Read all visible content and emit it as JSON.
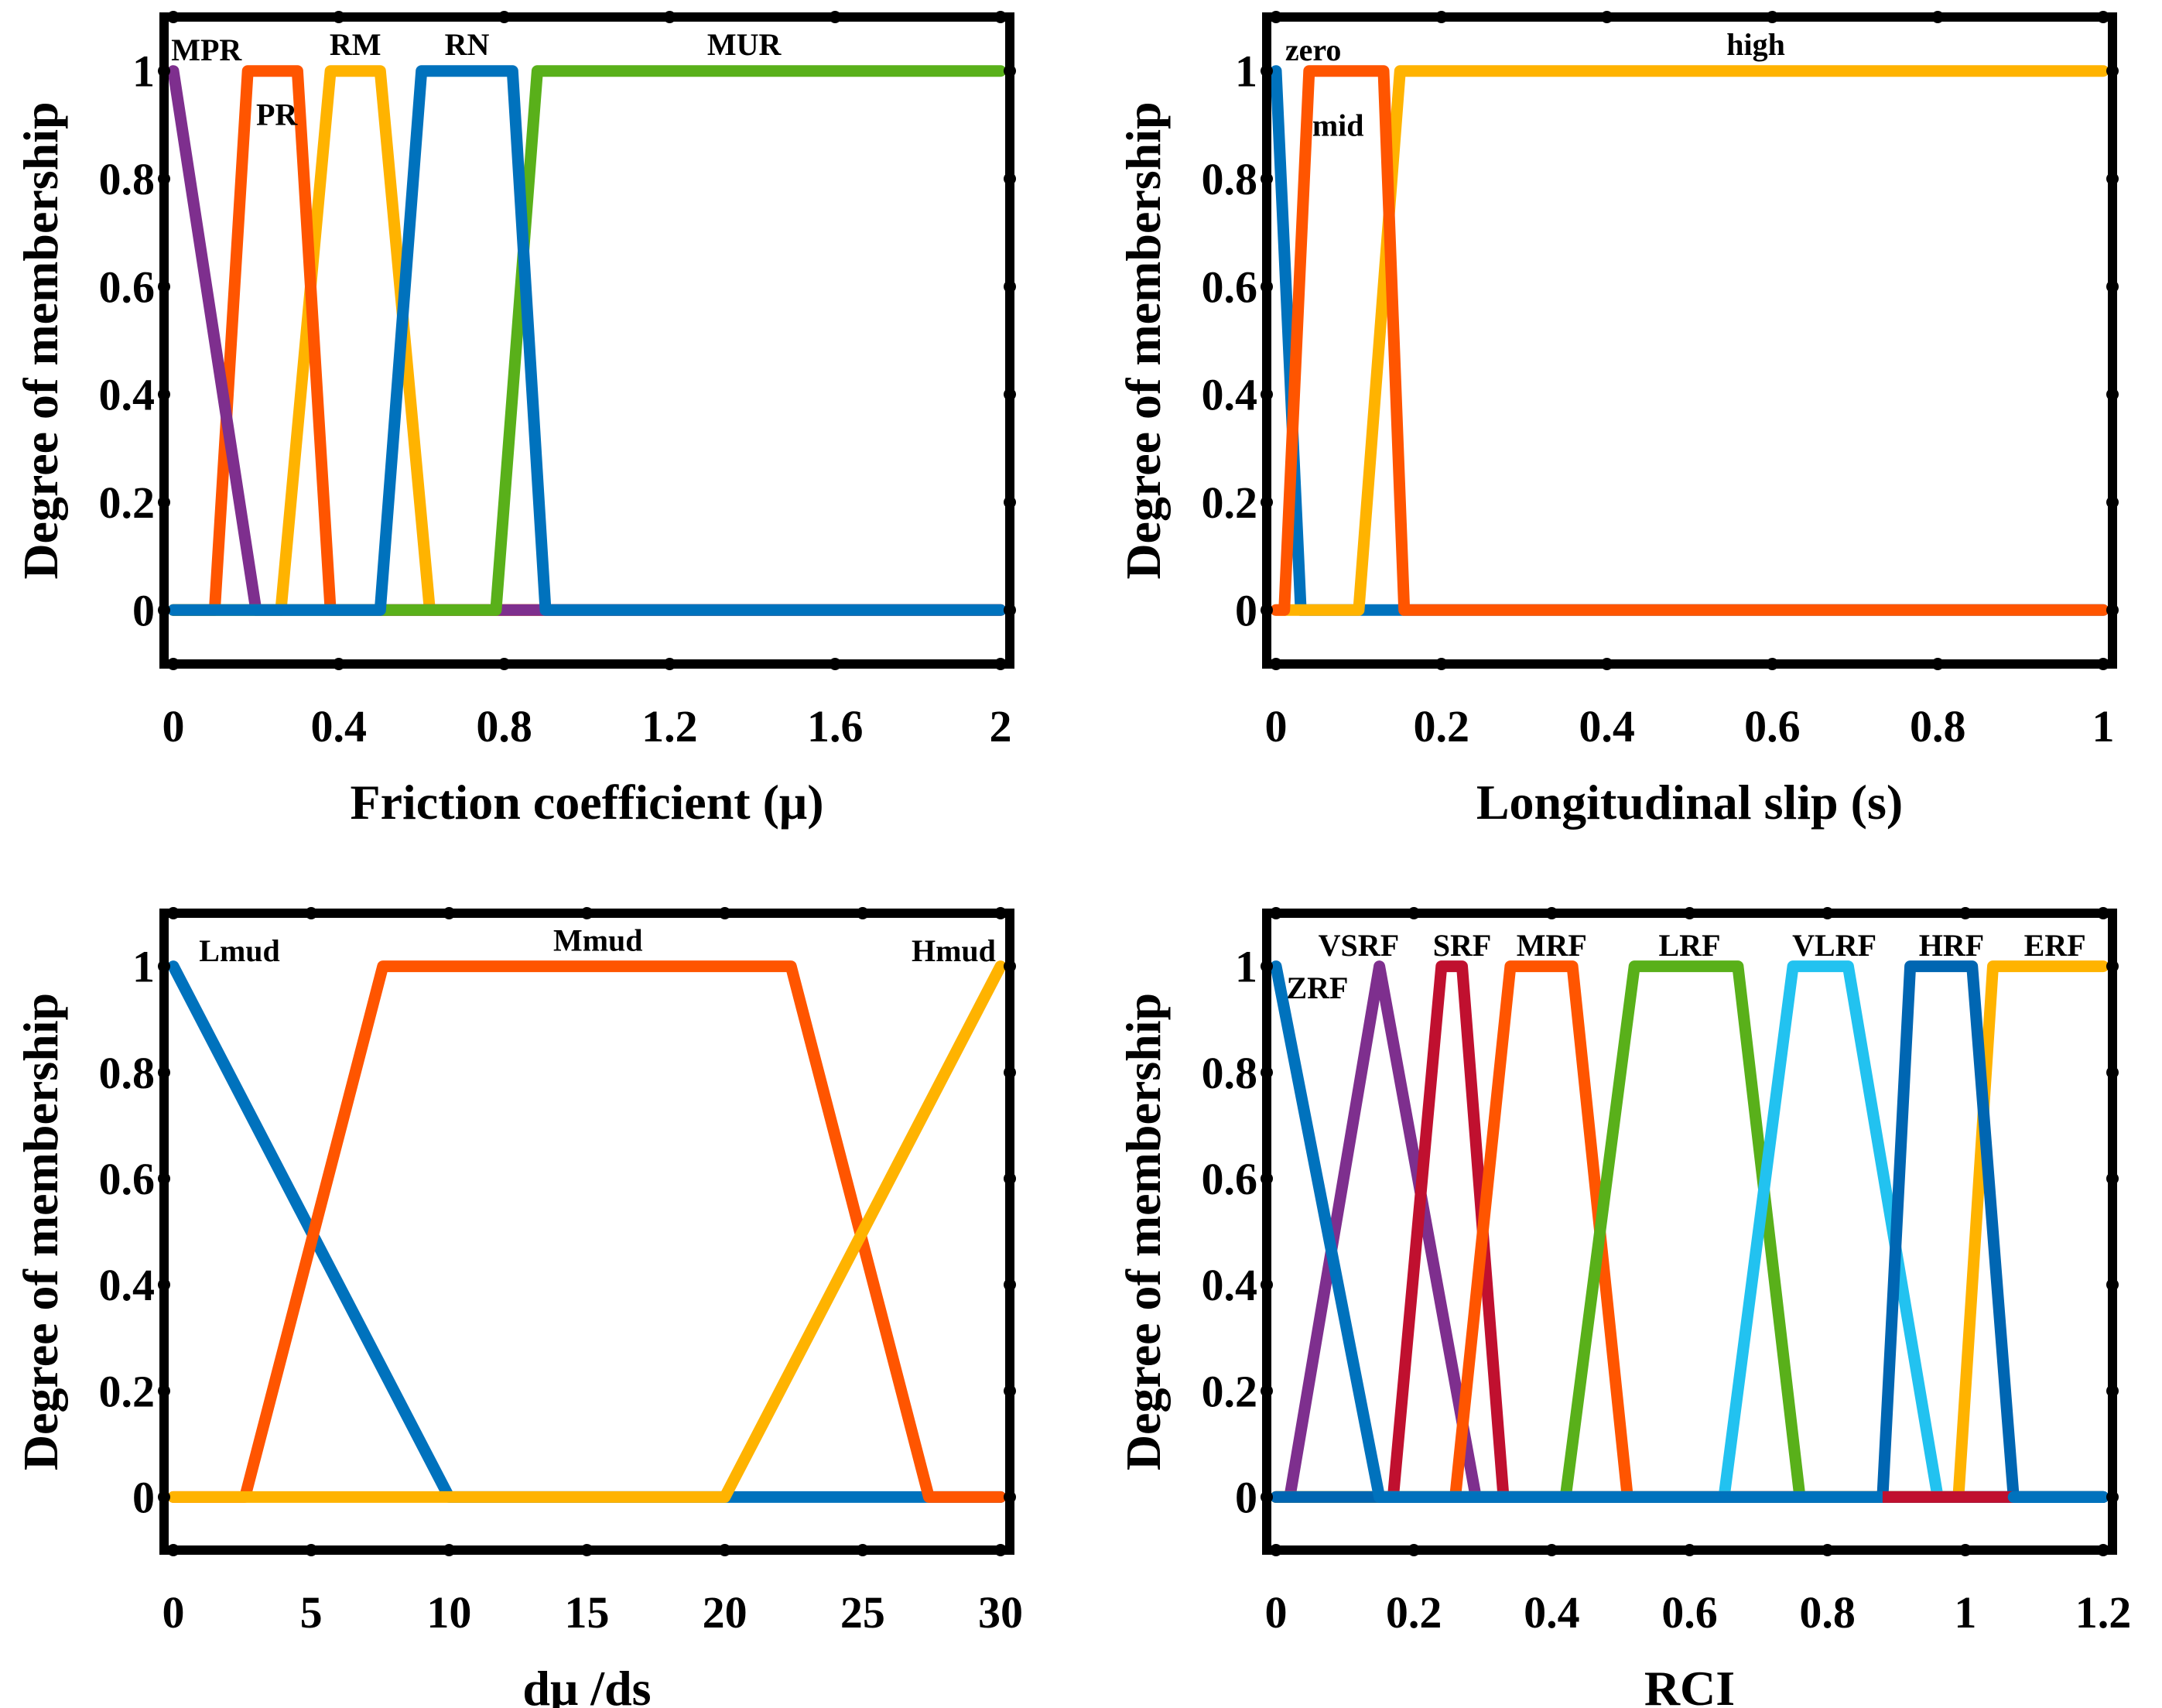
{
  "chart_data": [
    {
      "type": "line",
      "xlabel": "Friction coefficient (μ)",
      "ylabel": "Degree of membership",
      "xlim": [
        0,
        2
      ],
      "ylim": [
        -0.1,
        1.1
      ],
      "xticks": [
        0,
        0.4,
        0.8,
        1.2,
        1.6,
        2
      ],
      "xtick_labels": [
        "0",
        "0.4",
        "0.8",
        "1.2",
        "1.6",
        "2"
      ],
      "yticks": [
        0,
        0.2,
        0.4,
        0.6,
        0.8,
        1
      ],
      "ytick_labels": [
        "0",
        "0.2",
        "0.4",
        "0.6",
        "0.8",
        "1"
      ],
      "grid": false,
      "series": [
        {
          "name": "MPR",
          "color": "#7E2F8E",
          "x": [
            0,
            0.2,
            2
          ],
          "y": [
            1,
            0,
            0
          ],
          "label_pos": [
            0.08,
            1.04
          ]
        },
        {
          "name": "PR",
          "color": "#FF5500",
          "x": [
            0,
            0.1,
            0.18,
            0.3,
            0.38,
            2
          ],
          "y": [
            0,
            0,
            1,
            1,
            0,
            0
          ],
          "label_pos": [
            0.25,
            0.92
          ]
        },
        {
          "name": "RM",
          "color": "#FFB300",
          "x": [
            0,
            0.26,
            0.38,
            0.5,
            0.62,
            2
          ],
          "y": [
            0,
            0,
            1,
            1,
            0,
            0
          ],
          "label_pos": [
            0.44,
            1.05
          ]
        },
        {
          "name": "RN",
          "color": "#0072BD",
          "x": [
            0,
            0.5,
            0.6,
            0.82,
            0.9,
            2
          ],
          "y": [
            0,
            0,
            1,
            1,
            0,
            0
          ],
          "label_pos": [
            0.71,
            1.05
          ]
        },
        {
          "name": "MUR",
          "color": "#59B01A",
          "x": [
            0,
            0.78,
            0.88,
            2
          ],
          "y": [
            0,
            0,
            1,
            1
          ],
          "label_pos": [
            1.38,
            1.05
          ]
        }
      ],
      "draw_order": [
        2,
        1,
        0,
        4,
        3
      ]
    },
    {
      "type": "line",
      "xlabel": "Longitudinal slip (s)",
      "ylabel": "Degree of membership",
      "xlim": [
        0,
        1
      ],
      "ylim": [
        -0.1,
        1.1
      ],
      "xticks": [
        0,
        0.2,
        0.4,
        0.6,
        0.8,
        1
      ],
      "xtick_labels": [
        "0",
        "0.2",
        "0.4",
        "0.6",
        "0.8",
        "1"
      ],
      "yticks": [
        0,
        0.2,
        0.4,
        0.6,
        0.8,
        1
      ],
      "ytick_labels": [
        "0",
        "0.2",
        "0.4",
        "0.6",
        "0.8",
        "1"
      ],
      "grid": false,
      "series": [
        {
          "name": "zero",
          "color": "#0072BD",
          "x": [
            0,
            0.03,
            1
          ],
          "y": [
            1,
            0,
            0
          ],
          "label_pos": [
            0.045,
            1.04
          ]
        },
        {
          "name": "mid",
          "color": "#FF5500",
          "x": [
            0,
            0.01,
            0.04,
            0.13,
            0.155,
            1
          ],
          "y": [
            0,
            0,
            1,
            1,
            0,
            0
          ],
          "label_pos": [
            0.075,
            0.9
          ]
        },
        {
          "name": "high",
          "color": "#FFB300",
          "x": [
            0,
            0.1,
            0.15,
            1
          ],
          "y": [
            0,
            0,
            1,
            1
          ],
          "label_pos": [
            0.58,
            1.05
          ]
        }
      ],
      "draw_order": [
        0,
        2,
        1
      ]
    },
    {
      "type": "line",
      "xlabel": "dμ /ds",
      "ylabel": "Degree of membership",
      "xlim": [
        0,
        30
      ],
      "ylim": [
        -0.1,
        1.1
      ],
      "xticks": [
        0,
        5,
        10,
        15,
        20,
        25,
        30
      ],
      "xtick_labels": [
        "0",
        "5",
        "10",
        "15",
        "20",
        "25",
        "30"
      ],
      "yticks": [
        0,
        0.2,
        0.4,
        0.6,
        0.8,
        1
      ],
      "ytick_labels": [
        "0",
        "0.2",
        "0.4",
        "0.6",
        "0.8",
        "1"
      ],
      "grid": false,
      "series": [
        {
          "name": "Lmud",
          "color": "#0072BD",
          "x": [
            0,
            10,
            30
          ],
          "y": [
            1,
            0,
            0
          ],
          "label_pos": [
            2.4,
            1.03
          ]
        },
        {
          "name": "Mmud",
          "color": "#FF5500",
          "x": [
            0,
            2.6,
            7.6,
            22.4,
            27.4,
            30
          ],
          "y": [
            0,
            0,
            1,
            1,
            0,
            0
          ],
          "label_pos": [
            15.4,
            1.05
          ]
        },
        {
          "name": "Hmud",
          "color": "#FFB300",
          "x": [
            0,
            20,
            30
          ],
          "y": [
            0,
            0,
            1
          ],
          "label_pos": [
            28.3,
            1.03
          ]
        }
      ],
      "draw_order": [
        0,
        1,
        2
      ]
    },
    {
      "type": "line",
      "xlabel": "RCI",
      "ylabel": "Degree of membership",
      "xlim": [
        0,
        1.2
      ],
      "ylim": [
        -0.1,
        1.1
      ],
      "xticks": [
        0,
        0.2,
        0.4,
        0.6,
        0.8,
        1,
        1.2
      ],
      "xtick_labels": [
        "0",
        "0.2",
        "0.4",
        "0.6",
        "0.8",
        "1",
        "1.2"
      ],
      "yticks": [
        0,
        0.2,
        0.4,
        0.6,
        0.8,
        1
      ],
      "ytick_labels": [
        "0",
        "0.2",
        "0.4",
        "0.6",
        "0.8",
        "1"
      ],
      "grid": false,
      "series": [
        {
          "name": "ZRF",
          "color": "#0072BD",
          "x": [
            0,
            0.15,
            1.2
          ],
          "y": [
            1,
            0,
            0
          ],
          "label_pos": [
            0.06,
            0.96
          ]
        },
        {
          "name": "VSRF",
          "color": "#7E2F8E",
          "x": [
            0,
            0.02,
            0.15,
            0.29,
            1.2
          ],
          "y": [
            0,
            0,
            1,
            0,
            0
          ],
          "label_pos": [
            0.12,
            1.04
          ]
        },
        {
          "name": "SRF",
          "color": "#C0102F",
          "x": [
            0,
            0.17,
            0.24,
            0.27,
            0.33,
            1.2
          ],
          "y": [
            0,
            0,
            1,
            1,
            0,
            0
          ],
          "label_pos": [
            0.27,
            1.04
          ]
        },
        {
          "name": "MRF",
          "color": "#FF5500",
          "x": [
            0,
            0.26,
            0.34,
            0.43,
            0.51,
            1.2
          ],
          "y": [
            0,
            0,
            1,
            1,
            0,
            0
          ],
          "label_pos": [
            0.4,
            1.04
          ]
        },
        {
          "name": "LRF",
          "color": "#59B01A",
          "x": [
            0,
            0.42,
            0.52,
            0.67,
            0.76,
            1.2
          ],
          "y": [
            0,
            0,
            1,
            1,
            0,
            0
          ],
          "label_pos": [
            0.6,
            1.04
          ]
        },
        {
          "name": "VLRF",
          "color": "#22C2F0",
          "x": [
            0,
            0.65,
            0.75,
            0.83,
            0.96,
            1.2
          ],
          "y": [
            0,
            0,
            1,
            1,
            0,
            0
          ],
          "label_pos": [
            0.81,
            1.04
          ]
        },
        {
          "name": "HRF",
          "color": "#0066B2",
          "x": [
            0,
            0.88,
            0.92,
            1.01,
            1.07,
            1.2
          ],
          "y": [
            0,
            0,
            1,
            1,
            0,
            0
          ],
          "label_pos": [
            0.98,
            1.04
          ]
        },
        {
          "name": "ERF",
          "color": "#FFB300",
          "x": [
            0,
            0.99,
            1.04,
            1.2
          ],
          "y": [
            0,
            0,
            1,
            1
          ],
          "label_pos": [
            1.13,
            1.04
          ]
        }
      ],
      "draw_order": [
        1,
        2,
        3,
        4,
        5,
        7,
        6,
        0
      ],
      "highlight_segment": {
        "color": "#C0102F",
        "x": [
          0.88,
          1.07
        ],
        "y": [
          0,
          0
        ]
      }
    }
  ]
}
